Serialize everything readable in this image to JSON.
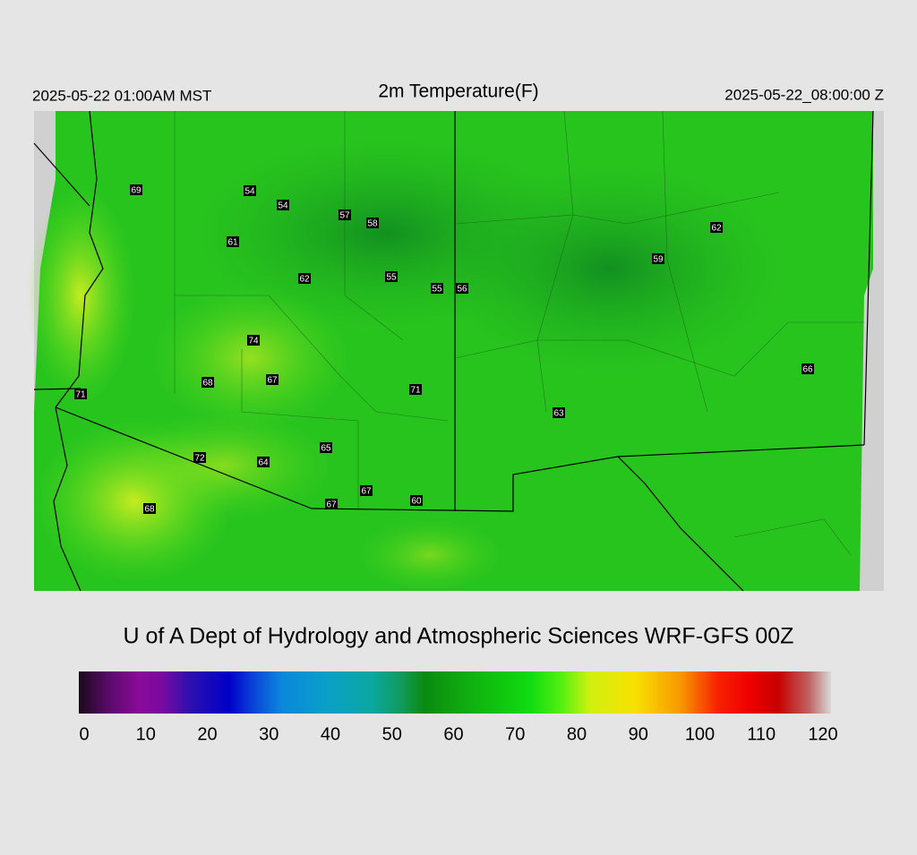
{
  "header": {
    "left": "2025-05-22 01:00AM MST",
    "title": "2m Temperature(F)",
    "right": "2025-05-22_08:00:00 Z"
  },
  "stations": [
    69,
    54,
    54,
    57,
    58,
    61,
    62,
    55,
    55,
    56,
    62,
    59,
    74,
    68,
    67,
    71,
    71,
    63,
    66,
    65,
    72,
    64,
    67,
    60,
    67,
    68
  ],
  "footer": "U of A Dept of Hydrology and Atmospheric Sciences WRF-GFS 00Z",
  "colorbar": {
    "range": [
      0,
      120
    ],
    "ticks": [
      0,
      10,
      20,
      30,
      40,
      50,
      60,
      70,
      80,
      90,
      100,
      110,
      120
    ]
  }
}
